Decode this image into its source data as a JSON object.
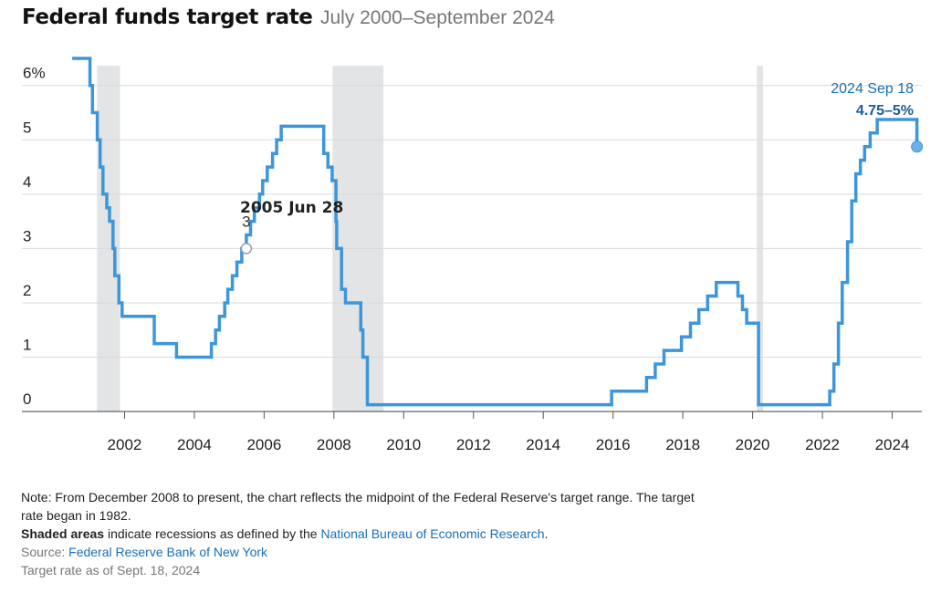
{
  "header": {
    "title": "Federal funds target rate",
    "subtitle": "July 2000–September 2024"
  },
  "chart_data": {
    "type": "line",
    "title": "Federal funds target rate",
    "subtitle": "July 2000–September 2024",
    "xlabel": "",
    "ylabel": "",
    "xlim": [
      2000.0,
      2024.85
    ],
    "ylim": [
      -0.15,
      6.6
    ],
    "x_ticks": [
      "2002",
      "2004",
      "2006",
      "2008",
      "2010",
      "2012",
      "2014",
      "2016",
      "2018",
      "2020",
      "2022",
      "2024"
    ],
    "y_ticks": [
      "0",
      "1",
      "2",
      "3",
      "4",
      "5",
      "6%"
    ],
    "grid": "horizontal",
    "line_color": "#3d96d9",
    "recession_color": "#e3e4e6",
    "recessions": [
      {
        "start": 2001.21,
        "end": 2001.87
      },
      {
        "start": 2007.96,
        "end": 2009.42
      },
      {
        "start": 2020.12,
        "end": 2020.3
      }
    ],
    "series": [
      {
        "values": [
          [
            2000.5,
            6.5
          ],
          [
            2000.97,
            6.5
          ],
          [
            2001.01,
            6.0
          ],
          [
            2001.08,
            5.5
          ],
          [
            2001.22,
            5.0
          ],
          [
            2001.3,
            4.5
          ],
          [
            2001.38,
            4.0
          ],
          [
            2001.49,
            3.75
          ],
          [
            2001.57,
            3.5
          ],
          [
            2001.67,
            3.0
          ],
          [
            2001.72,
            2.5
          ],
          [
            2001.84,
            2.0
          ],
          [
            2001.93,
            1.75
          ],
          [
            2002.85,
            1.25
          ],
          [
            2003.49,
            1.0
          ],
          [
            2004.49,
            1.25
          ],
          [
            2004.61,
            1.5
          ],
          [
            2004.72,
            1.75
          ],
          [
            2004.87,
            2.0
          ],
          [
            2004.96,
            2.25
          ],
          [
            2005.09,
            2.5
          ],
          [
            2005.22,
            2.75
          ],
          [
            2005.36,
            3.0
          ],
          [
            2005.49,
            3.25
          ],
          [
            2005.61,
            3.5
          ],
          [
            2005.72,
            3.75
          ],
          [
            2005.87,
            4.0
          ],
          [
            2005.96,
            4.25
          ],
          [
            2006.09,
            4.5
          ],
          [
            2006.24,
            4.75
          ],
          [
            2006.36,
            5.0
          ],
          [
            2006.49,
            5.25
          ],
          [
            2007.71,
            4.75
          ],
          [
            2007.83,
            4.5
          ],
          [
            2007.95,
            4.25
          ],
          [
            2008.06,
            3.5
          ],
          [
            2008.08,
            3.0
          ],
          [
            2008.22,
            2.25
          ],
          [
            2008.33,
            2.0
          ],
          [
            2008.77,
            1.5
          ],
          [
            2008.83,
            1.0
          ],
          [
            2008.96,
            0.125
          ],
          [
            2015.96,
            0.375
          ],
          [
            2016.96,
            0.625
          ],
          [
            2017.21,
            0.875
          ],
          [
            2017.46,
            1.125
          ],
          [
            2017.96,
            1.375
          ],
          [
            2018.22,
            1.625
          ],
          [
            2018.46,
            1.875
          ],
          [
            2018.71,
            2.125
          ],
          [
            2018.96,
            2.375
          ],
          [
            2019.58,
            2.125
          ],
          [
            2019.71,
            1.875
          ],
          [
            2019.83,
            1.625
          ],
          [
            2020.17,
            0.125
          ],
          [
            2022.21,
            0.375
          ],
          [
            2022.33,
            0.875
          ],
          [
            2022.46,
            1.625
          ],
          [
            2022.57,
            2.375
          ],
          [
            2022.72,
            3.125
          ],
          [
            2022.84,
            3.875
          ],
          [
            2022.96,
            4.375
          ],
          [
            2023.09,
            4.625
          ],
          [
            2023.21,
            4.875
          ],
          [
            2023.37,
            5.125
          ],
          [
            2023.57,
            5.375
          ],
          [
            2024.71,
            4.875
          ]
        ]
      }
    ],
    "end_x": 2024.74,
    "annotations": [
      {
        "date_label": "2005 Jun 28",
        "value_label": "3",
        "x": 2005.49,
        "y": 3.0
      },
      {
        "date_label": "2024 Sep 18",
        "value_label": "4.75–5%",
        "x": 2024.71,
        "y": 4.875
      }
    ]
  },
  "notes": {
    "line1_before": "Note: From December 2008 to present, the chart reflects the ",
    "line1_mid": "midpoint",
    "line1_after": " of the Federal Reserve's target range. The target rate began in 1982.",
    "line2_strong": "Shaded areas",
    "line2_before": " indicate recessions as defined by the ",
    "line2_link": "National Bureau of Economic Research",
    "line2_end": ".",
    "source_label": "Source: ",
    "source_link": "Federal Reserve Bank of New York",
    "asof": "Target rate as of Sept. 18, 2024"
  }
}
